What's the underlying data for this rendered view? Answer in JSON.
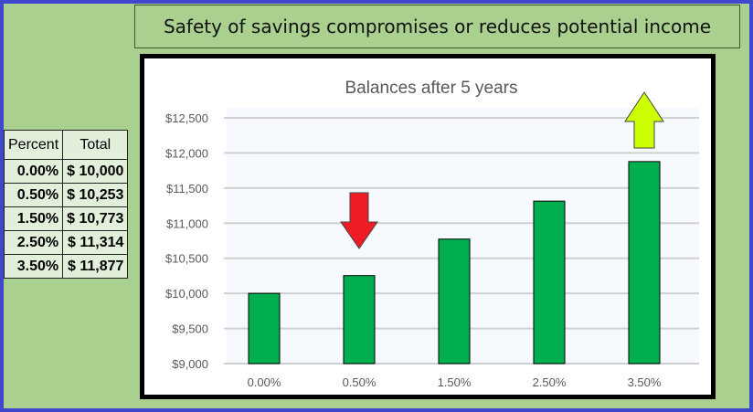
{
  "banner": {
    "text": "Safety of savings compromises or reduces potential income"
  },
  "table": {
    "headers": [
      "Percent",
      "Total"
    ],
    "rows": [
      [
        "0.00%",
        "$ 10,000"
      ],
      [
        "0.50%",
        "$ 10,253"
      ],
      [
        "1.50%",
        "$ 10,773"
      ],
      [
        "2.50%",
        "$ 11,314"
      ],
      [
        "3.50%",
        "$ 11,877"
      ]
    ]
  },
  "chart_data": {
    "type": "bar",
    "title": "Balances after 5 years",
    "categories": [
      "0.00%",
      "0.50%",
      "1.50%",
      "2.50%",
      "3.50%"
    ],
    "values": [
      10000,
      10253,
      10773,
      11314,
      11877
    ],
    "ylim": [
      9000,
      12500
    ],
    "yticks": [
      "$9,000",
      "$9,500",
      "$10,000",
      "$10,500",
      "$11,000",
      "$11,500",
      "$12,000",
      "$12,500"
    ],
    "grid": true,
    "bar_color": "#00b050",
    "annotations": [
      {
        "type": "down-arrow",
        "category": "0.50%",
        "color": "#ee1c24"
      },
      {
        "type": "up-arrow",
        "category": "3.50%",
        "color": "#ccff00"
      }
    ]
  }
}
